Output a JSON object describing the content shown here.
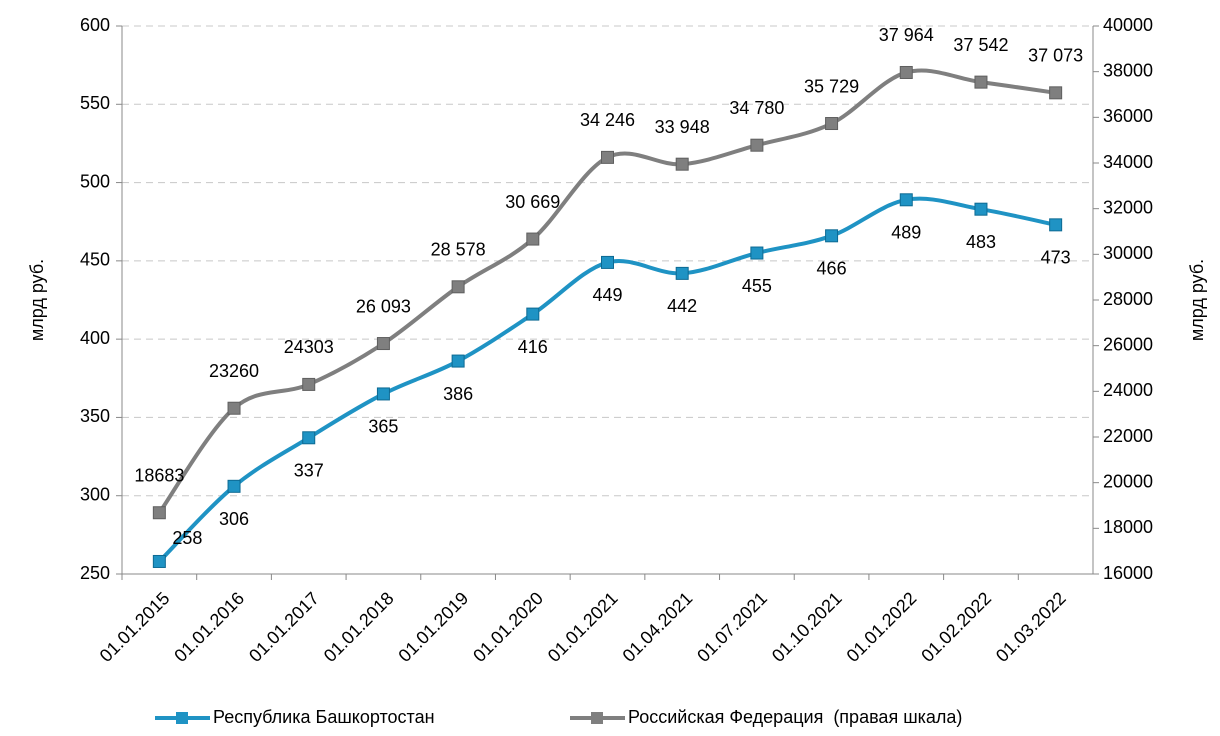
{
  "chart_data": {
    "type": "line",
    "categories": [
      "01.01.2015",
      "01.01.2016",
      "01.01.2017",
      "01.01.2018",
      "01.01.2019",
      "01.01.2020",
      "01.01.2021",
      "01.04.2021",
      "01.07.2021",
      "01.10.2021",
      "01.01.2022",
      "01.02.2022",
      "01.03.2022"
    ],
    "series": [
      {
        "name": "Республика Башкортостан",
        "color": "#1f93c4",
        "values": [
          258,
          306,
          337,
          365,
          386,
          416,
          449,
          442,
          455,
          466,
          489,
          483,
          473
        ]
      },
      {
        "name": "Российская Федерация  (правая шкала)",
        "color": "#7f7f7f",
        "axis": "y2",
        "values": [
          18683,
          23260,
          24303,
          26093,
          28578,
          30669,
          34246,
          33948,
          34780,
          35729,
          37964,
          37542,
          37073
        ],
        "value_labels": [
          "18683",
          "23260",
          "24303",
          "26 093",
          "28 578",
          "30 669",
          "34 246",
          "33 948",
          "34 780",
          "35 729",
          "37 964",
          "37 542",
          "37 073"
        ]
      }
    ],
    "ylabel": "млрд руб.",
    "y2label": "млрд руб.",
    "ylim": [
      250,
      600
    ],
    "yticks": [
      250,
      300,
      350,
      400,
      450,
      500,
      550,
      600
    ],
    "y2lim": [
      16000,
      40000
    ],
    "y2ticks": [
      16000,
      18000,
      20000,
      22000,
      24000,
      26000,
      28000,
      30000,
      32000,
      34000,
      36000,
      38000,
      40000
    ],
    "grid": true,
    "legend": "bottom"
  }
}
